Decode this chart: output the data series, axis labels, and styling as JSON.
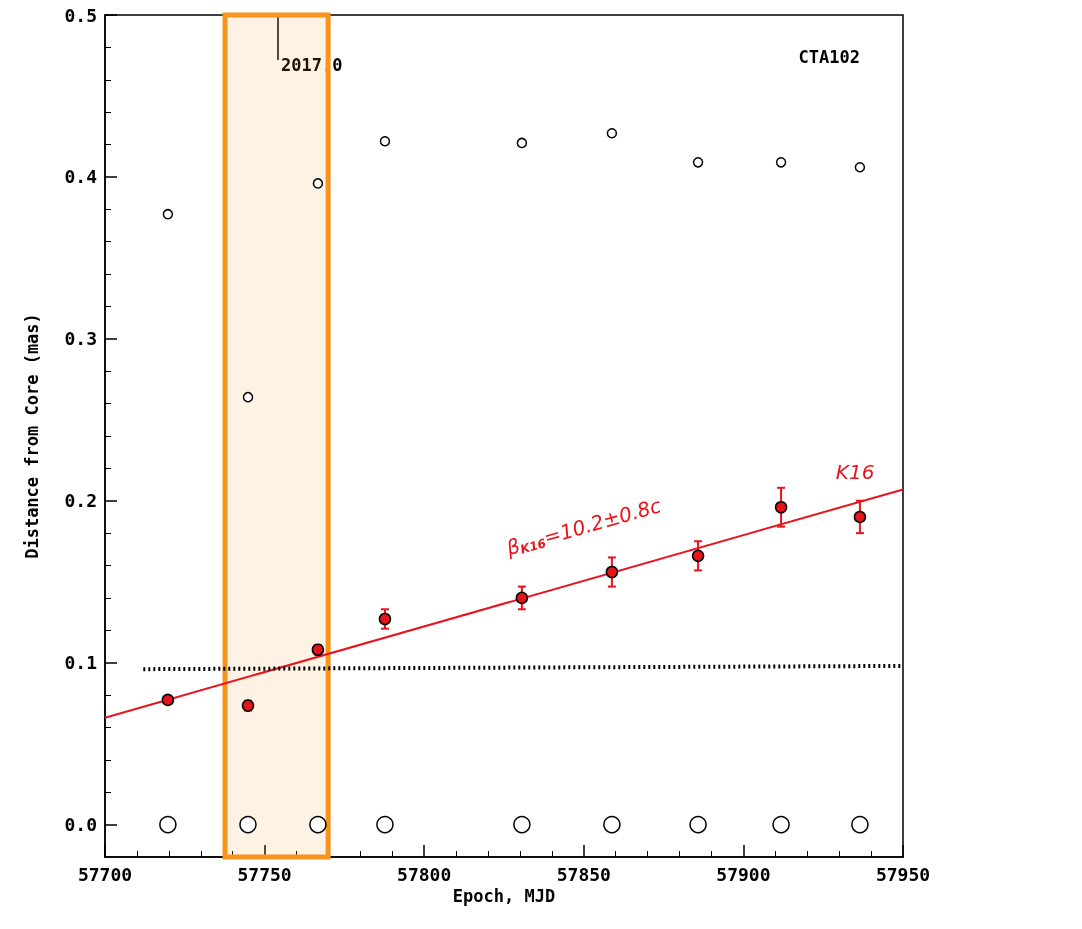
{
  "chart_data": {
    "type": "scatter",
    "xlabel": "Epoch, MJD",
    "ylabel": "Distance from Core (mas)",
    "xlim": [
      57700,
      57950
    ],
    "xticks": [
      57700,
      57750,
      57800,
      57850,
      57900,
      57950
    ],
    "ylim": [
      -0.02,
      0.5
    ],
    "yticks": [
      {
        "value": 0,
        "label": "0.0"
      },
      0.1,
      0.2,
      0.3,
      0.4,
      0.5
    ],
    "grid": false,
    "marker": "circle",
    "series": [
      {
        "color": "#e8141b",
        "x": [
          57719.7,
          57744.8,
          57766.7,
          57787.7,
          57830.6,
          57858.8,
          57885.8,
          57911.8,
          57936.5
        ],
        "values": [
          0.077,
          0.0735,
          0.108,
          0.127,
          0.14,
          0.156,
          0.166,
          0.196,
          0.19
        ],
        "errors": [
          0.002,
          0.003,
          0.003,
          0.006,
          0.007,
          0.009,
          0.009,
          0.012,
          0.01
        ]
      },
      {
        "color": "#000000",
        "x": [
          57719.7,
          57744.8,
          57766.7,
          57787.7,
          57830.6,
          57858.8,
          57885.8,
          57911.8,
          57936.5
        ],
        "values": [
          0.377,
          0.264,
          0.396,
          0.422,
          0.421,
          0.427,
          0.409,
          0.409,
          0.406
        ]
      },
      {
        "color": "#000000",
        "x": [
          57719.7,
          57744.8,
          57766.7,
          57787.7,
          57830.6,
          57858.8,
          57885.8,
          57911.8,
          57936.5
        ],
        "values": [
          0,
          0,
          0,
          0,
          0,
          0,
          0,
          0,
          0
        ]
      },
      {
        "type": "line",
        "color": "#e8141b",
        "x": [
          57700,
          57950
        ],
        "values": [
          0.066,
          0.207
        ],
        "marker": "none"
      },
      {
        "type": "line",
        "color": "#000000",
        "line_style": "dotted",
        "x": [
          57712,
          57950
        ],
        "values": [
          0.096,
          0.098
        ],
        "marker": "none"
      }
    ],
    "bands": [
      {
        "axis": "x",
        "from": 57737.6,
        "to": 57769.9,
        "color": "#f7941d"
      }
    ],
    "annotations": [
      {
        "text": "2017.0",
        "x": 57754.2,
        "y": 0.5
      },
      "CTA102",
      "K16",
      "β$_{K16}$=10.2±0.8c"
    ]
  }
}
